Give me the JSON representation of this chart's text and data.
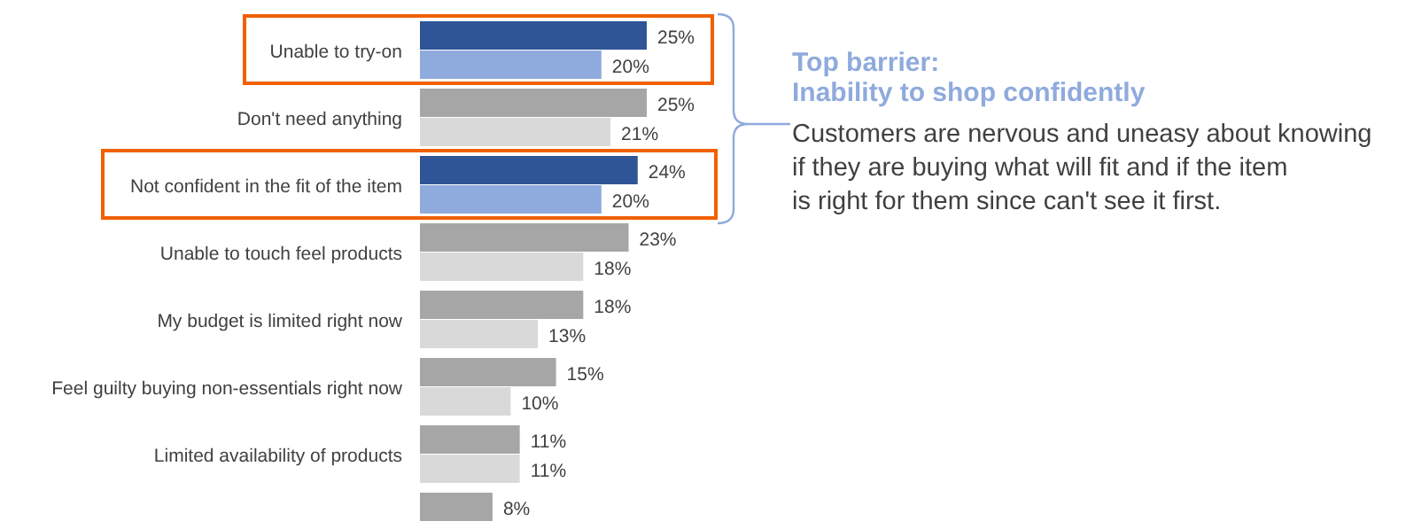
{
  "chart_data": {
    "type": "bar",
    "orientation": "horizontal",
    "categories": [
      "Unable to try-on",
      "Don't need anything",
      "Not confident in the fit of the item",
      "Unable to touch feel products",
      "My budget is limited right now",
      "Feel guilty buying non-essentials right now",
      "Limited availability of products",
      null
    ],
    "series": [
      {
        "colors": [
          "#2f5597",
          "#a6a6a6",
          "#2f5597",
          "#a6a6a6",
          "#a6a6a6",
          "#a6a6a6",
          "#a6a6a6",
          "#a6a6a6"
        ],
        "values": [
          25,
          25,
          24,
          23,
          18,
          15,
          11,
          8
        ],
        "value_labels": [
          "25%",
          "25%",
          "24%",
          "23%",
          "18%",
          "15%",
          "11%",
          "8%"
        ]
      },
      {
        "colors": [
          "#8faadc",
          "#d9d9d9",
          "#8faadc",
          "#d9d9d9",
          "#d9d9d9",
          "#d9d9d9",
          "#d9d9d9",
          "#d9d9d9"
        ],
        "values": [
          20,
          21,
          20,
          18,
          13,
          10,
          11,
          null
        ],
        "value_labels": [
          "20%",
          "21%",
          "20%",
          "18%",
          "13%",
          "10%",
          "11%",
          null
        ]
      }
    ],
    "annotations": [
      "Top barrier:",
      "Inability to shop confidently",
      "Customers are nervous and uneasy about knowing if they are buying what will fit and if the item is right for them since can't see it first."
    ]
  }
}
